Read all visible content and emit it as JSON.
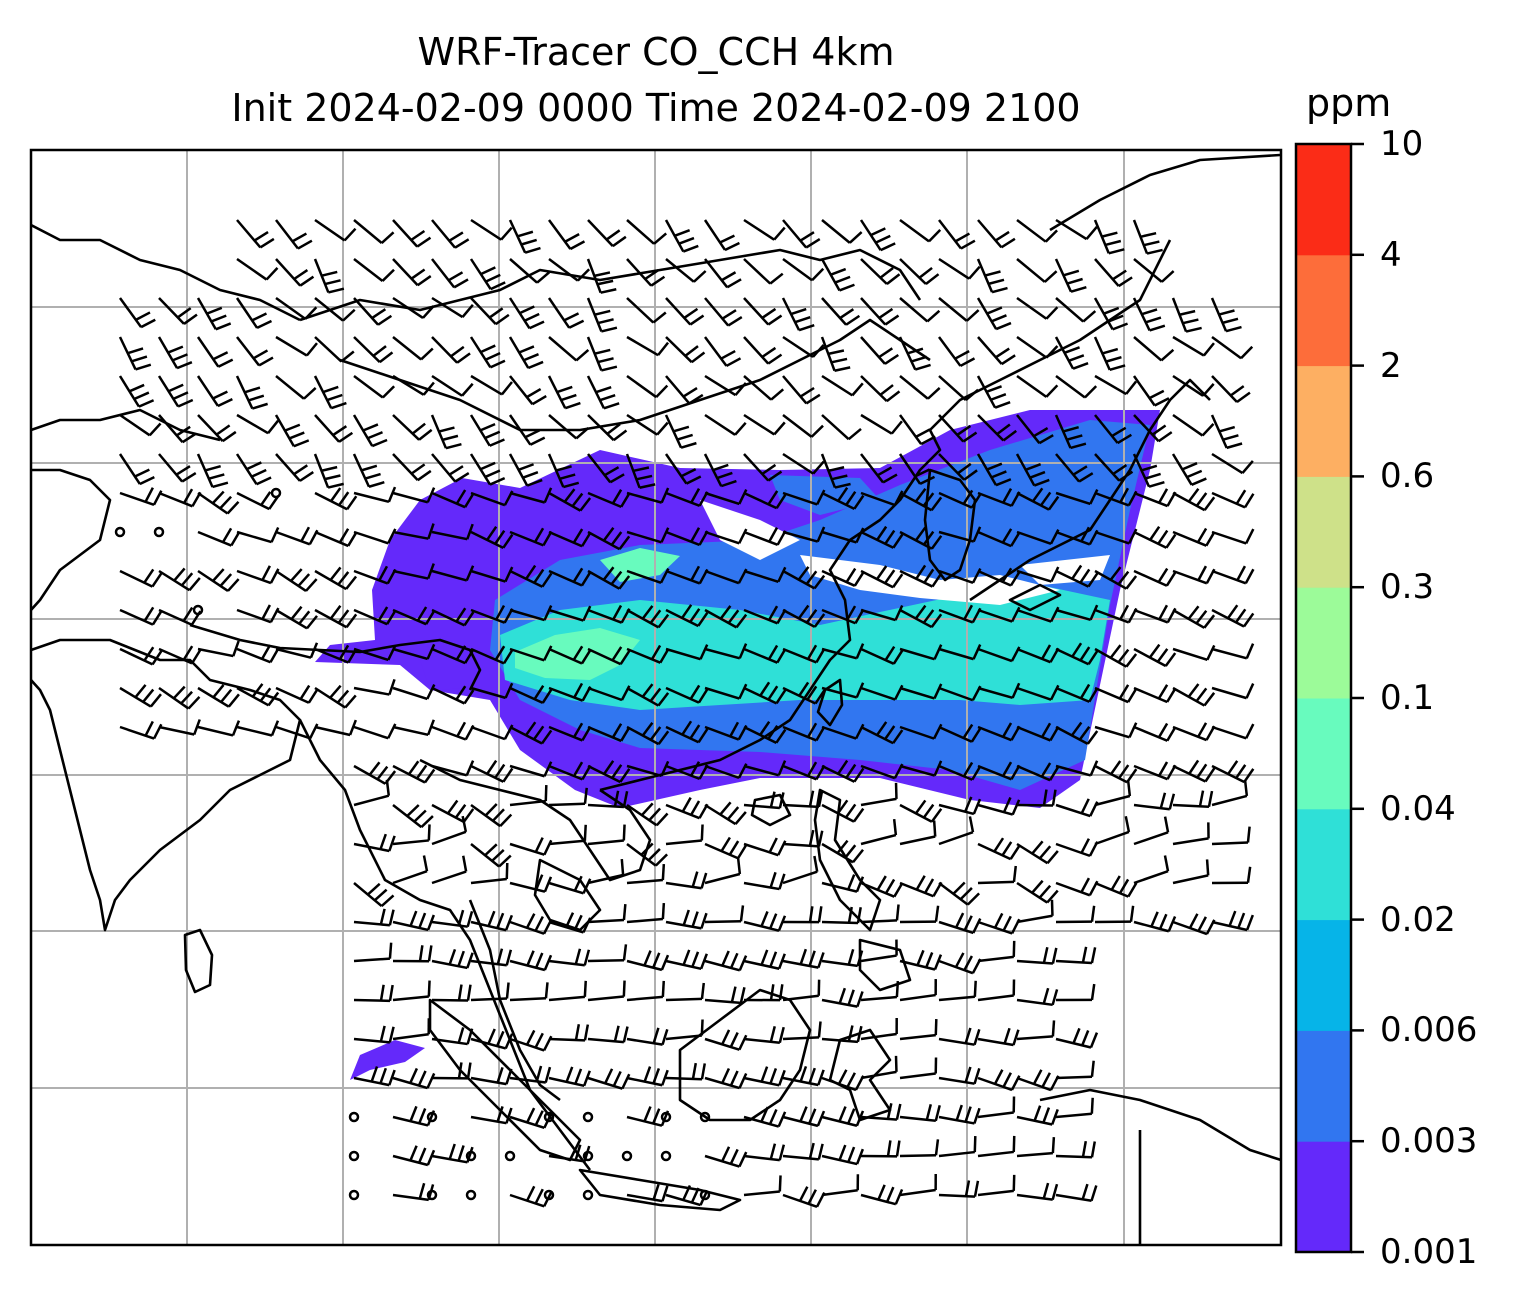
{
  "header": {
    "title_line1": "WRF-Tracer CO_CCH 4km",
    "title_line2": "Init 2024-02-09 0000 Time 2024-02-09 2100"
  },
  "colorbar": {
    "units": "ppm",
    "levels": [
      "0.001",
      "0.003",
      "0.006",
      "0.02",
      "0.04",
      "0.1",
      "0.3",
      "0.6",
      "2",
      "4",
      "10"
    ],
    "colors": [
      "#6429fa",
      "#3176f0",
      "#06b4e8",
      "#2fe0d7",
      "#68fbbe",
      "#9cfb99",
      "#cee189",
      "#fdaf62",
      "#fd6d3a",
      "#fb2c17"
    ]
  },
  "map": {
    "background": "#ffffff",
    "gridline_color": "#b0b0b0",
    "coastline_color": "#000000",
    "plume_colors": {
      "outer": "#6429fa",
      "mid": "#3176f0",
      "inner": "#2fe0d7",
      "core": "#68fbbe"
    }
  }
}
